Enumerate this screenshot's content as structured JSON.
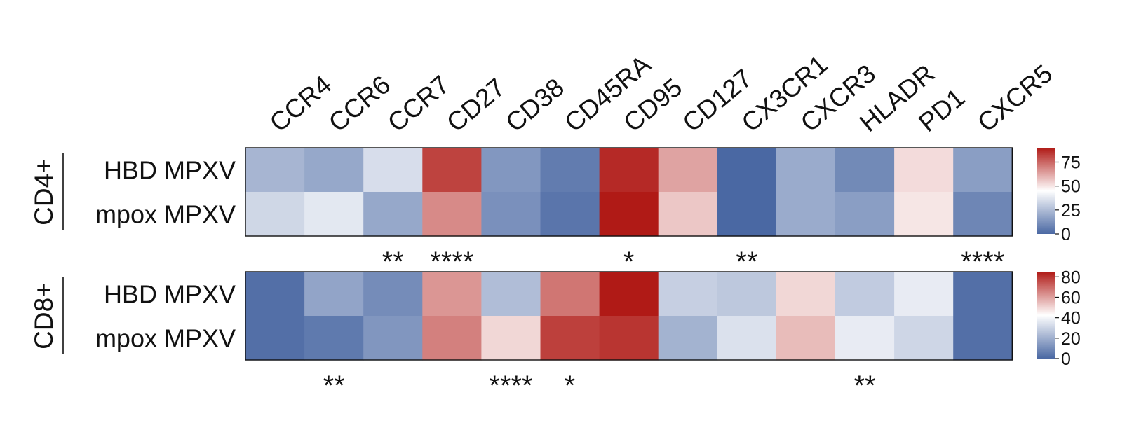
{
  "chart_data": {
    "type": "heatmap",
    "title": "",
    "columns": [
      "CCR4",
      "CCR6",
      "CCR7",
      "CD27",
      "CD38",
      "CD45RA",
      "CD95",
      "CD127",
      "CX3CR1",
      "CXCR3",
      "HLADR",
      "PD1",
      "CXCR5"
    ],
    "colorscale": {
      "low": "#4a68a3",
      "mid": "#ffffff",
      "high": "#b01a16"
    },
    "panels": [
      {
        "group": "CD4+",
        "rows": [
          "HBD MPXV",
          "mpox MPXV"
        ],
        "values": [
          [
            23,
            19,
            35,
            82,
            14,
            6,
            87,
            63,
            0,
            20,
            10,
            52,
            16
          ],
          [
            33,
            38,
            19,
            68,
            12,
            4,
            92,
            56,
            0,
            20,
            16,
            50,
            9
          ]
        ],
        "colorbar": {
          "min": 0,
          "max": 90,
          "ticks": [
            "75",
            "50",
            "25",
            "0"
          ]
        },
        "significance": [
          {
            "column": "CCR7",
            "label": "**"
          },
          {
            "column": "CD27",
            "label": "****"
          },
          {
            "column": "CD95",
            "label": "*"
          },
          {
            "column": "CX3CR1",
            "label": "**"
          },
          {
            "column": "CXCR5",
            "label": "****"
          }
        ]
      },
      {
        "group": "CD8+",
        "rows": [
          "HBD MPXV",
          "mpox MPXV"
        ],
        "values": [
          [
            2,
            17,
            10,
            62,
            24,
            68,
            85,
            29,
            27,
            50,
            28,
            37,
            2
          ],
          [
            2,
            5,
            13,
            66,
            50,
            78,
            80,
            21,
            34,
            55,
            37,
            31,
            2
          ]
        ],
        "colorbar": {
          "min": 0,
          "max": 85,
          "ticks": [
            "80",
            "60",
            "40",
            "20",
            "0"
          ]
        },
        "significance": [
          {
            "column": "CCR6",
            "label": "**"
          },
          {
            "column": "CD38",
            "label": "****"
          },
          {
            "column": "CD45RA",
            "label": "*"
          },
          {
            "column": "HLADR",
            "label": "**"
          }
        ]
      }
    ]
  }
}
